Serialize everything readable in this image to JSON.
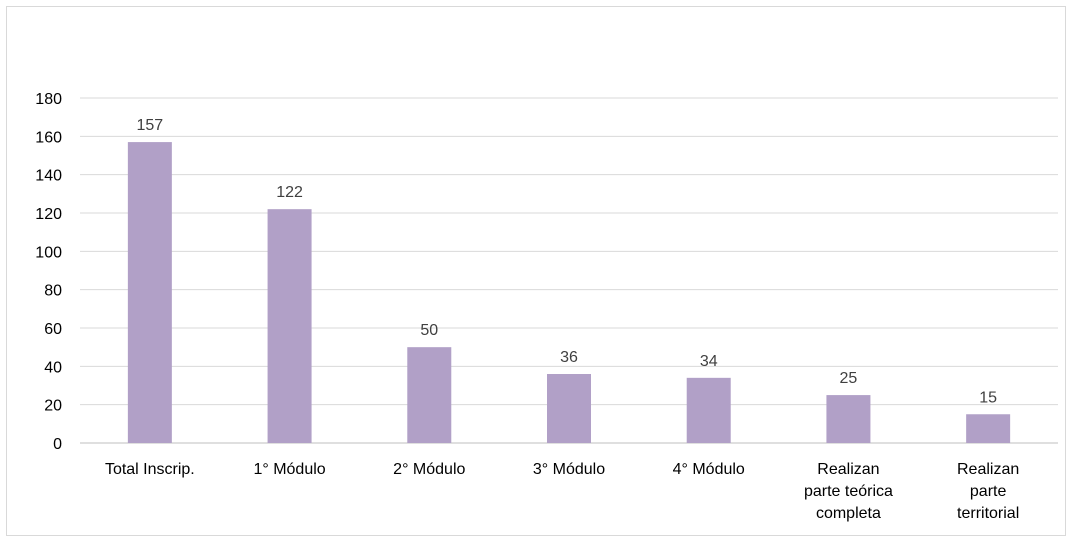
{
  "chart_data": {
    "type": "bar",
    "categories": [
      [
        "Total Inscrip."
      ],
      [
        "1° Módulo"
      ],
      [
        "2° Módulo"
      ],
      [
        "3° Módulo"
      ],
      [
        "4° Módulo"
      ],
      [
        "Realizan",
        "parte teórica",
        "completa"
      ],
      [
        "Realizan",
        "parte",
        "territorial"
      ]
    ],
    "values": [
      157,
      122,
      50,
      36,
      34,
      25,
      15
    ],
    "yticks": [
      0,
      20,
      40,
      60,
      80,
      100,
      120,
      140,
      160,
      180
    ],
    "ylim": [
      0,
      180
    ],
    "grid": true,
    "colors": {
      "bar": "#b1a0c7",
      "grid": "#d9d9d9",
      "axis": "#bfbfbf"
    }
  }
}
